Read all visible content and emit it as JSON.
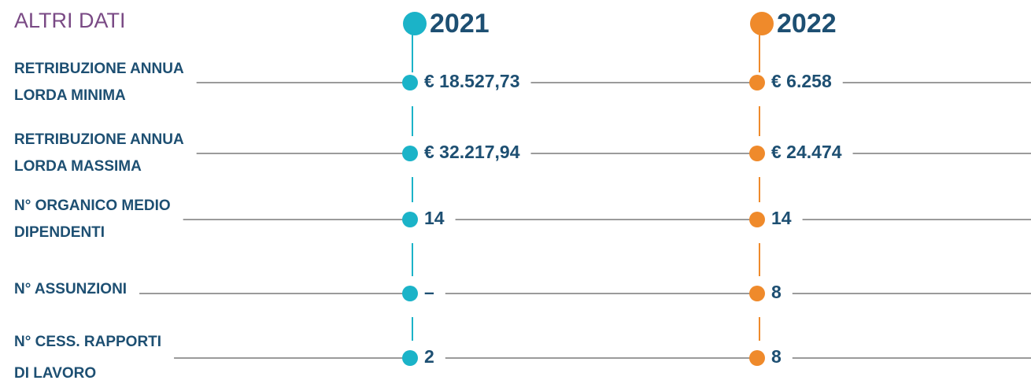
{
  "title": "ALTRI DATI",
  "years": [
    "2021",
    "2022"
  ],
  "rows": [
    {
      "label": [
        "RETRIBUZIONE ANNUA",
        "LORDA MINIMA"
      ],
      "values": [
        "€ 18.527,73",
        "€ 6.258"
      ]
    },
    {
      "label": [
        "RETRIBUZIONE ANNUA",
        "LORDA MASSIMA"
      ],
      "values": [
        "€ 32.217,94",
        "€ 24.474"
      ]
    },
    {
      "label": [
        "N° ORGANICO MEDIO",
        "DIPENDENTI"
      ],
      "values": [
        "14",
        "14"
      ]
    },
    {
      "label": [
        "N° ASSUNZIONI"
      ],
      "values": [
        "–",
        "8"
      ]
    },
    {
      "label": [
        "N° CESS. RAPPORTI",
        "DI LAVORO"
      ],
      "values": [
        "2",
        "8"
      ]
    }
  ]
}
